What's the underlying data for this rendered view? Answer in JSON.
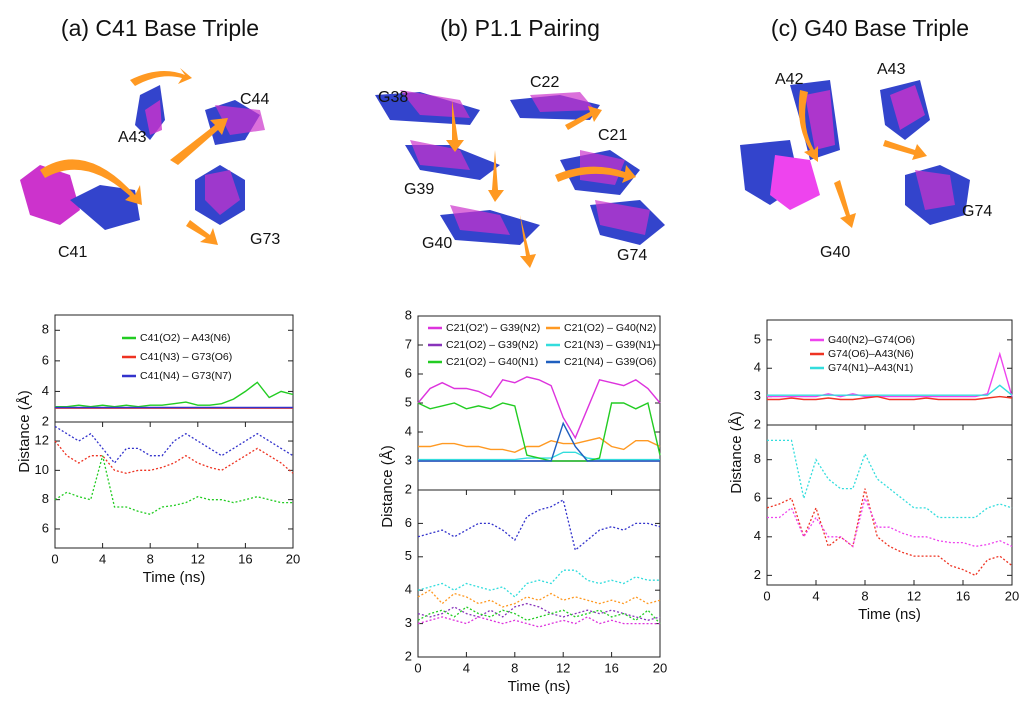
{
  "panels": [
    {
      "title": "(a) C41 Base Triple",
      "residue_labels": [
        "A43",
        "C44",
        "C41",
        "G73"
      ]
    },
    {
      "title": "(b) P1.1 Pairing",
      "residue_labels": [
        "G38",
        "C22",
        "C21",
        "G39",
        "G40",
        "G74"
      ]
    },
    {
      "title": "(c) G40 Base Triple",
      "residue_labels": [
        "A42",
        "A43",
        "G74",
        "G40"
      ]
    }
  ],
  "chart_data": [
    {
      "type": "line",
      "ylabel": "Distance (Å)",
      "line_style": "solid",
      "legend_columns": 1,
      "x": [
        0,
        1,
        2,
        3,
        4,
        5,
        6,
        7,
        8,
        9,
        10,
        11,
        12,
        13,
        14,
        15,
        16,
        17,
        18,
        19,
        20
      ],
      "xlim": [
        0,
        20
      ],
      "ylim": [
        2,
        9
      ],
      "yticks": [
        2,
        4,
        6,
        8
      ],
      "series": [
        {
          "name": "C41(O2) – A43(N6)",
          "color": "#22cc22",
          "values": [
            3,
            3,
            3.1,
            3,
            3.1,
            3,
            3.1,
            3,
            3.1,
            3.1,
            3.2,
            3.3,
            3.1,
            3.1,
            3.2,
            3.5,
            4,
            4.6,
            3.6,
            4,
            3.8
          ]
        },
        {
          "name": "C41(N3) – G73(O6)",
          "color": "#ee3322",
          "values": [
            2.9,
            2.9,
            2.9,
            2.9,
            2.9,
            2.9,
            2.9,
            2.9,
            2.9,
            2.9,
            2.9,
            2.9,
            2.9,
            2.9,
            2.9,
            2.9,
            2.9,
            2.9,
            2.9,
            2.9,
            2.9
          ]
        },
        {
          "name": "C41(N4) – G73(N7)",
          "color": "#3333cc",
          "values": [
            2.95,
            2.95,
            2.95,
            2.95,
            2.95,
            2.95,
            2.95,
            2.95,
            2.95,
            2.95,
            2.95,
            2.95,
            2.95,
            2.95,
            2.95,
            2.95,
            2.95,
            2.95,
            2.95,
            2.95,
            2.95
          ]
        }
      ]
    },
    {
      "type": "line",
      "xlabel": "Time (ns)",
      "line_style": "dotted",
      "x": [
        0,
        1,
        2,
        3,
        4,
        5,
        6,
        7,
        8,
        9,
        10,
        11,
        12,
        13,
        14,
        15,
        16,
        17,
        18,
        19,
        20
      ],
      "xlim": [
        0,
        20
      ],
      "xticks": [
        0,
        4,
        8,
        12,
        16,
        20
      ],
      "ylim": [
        4.7,
        13.3
      ],
      "yticks": [
        6,
        8,
        10,
        12
      ],
      "series": [
        {
          "color": "#3333cc",
          "values": [
            13,
            12.5,
            12,
            12.5,
            11.5,
            10.5,
            11.5,
            11.5,
            11,
            11,
            12,
            12.5,
            12,
            11.5,
            11,
            11.5,
            12,
            12.5,
            12,
            11.5,
            11
          ]
        },
        {
          "color": "#ee3322",
          "values": [
            12,
            11,
            10.5,
            11,
            11,
            10,
            9.8,
            10,
            10,
            10.2,
            10.5,
            11,
            10.5,
            10.2,
            10,
            10.5,
            11,
            11.5,
            11,
            10.5,
            9.8
          ]
        },
        {
          "color": "#22cc22",
          "values": [
            8,
            8.5,
            8.2,
            8,
            11,
            7.5,
            7.5,
            7.2,
            7,
            7.5,
            7.6,
            7.8,
            8.2,
            8,
            8,
            7.8,
            8,
            8.2,
            8,
            7.8,
            7.8
          ]
        }
      ]
    },
    {
      "type": "line",
      "ylabel": "Distance (Å)",
      "line_style": "solid",
      "legend_columns": 2,
      "x": [
        0,
        1,
        2,
        3,
        4,
        5,
        6,
        7,
        8,
        9,
        10,
        11,
        12,
        13,
        14,
        15,
        16,
        17,
        18,
        19,
        20
      ],
      "xlim": [
        0,
        20
      ],
      "ylim": [
        2,
        8
      ],
      "yticks": [
        2,
        3,
        4,
        5,
        6,
        7,
        8
      ],
      "series": [
        {
          "name": "C21(O2') – G39(N2)",
          "color": "#dd33dd",
          "values": [
            5,
            5.5,
            5.7,
            5.5,
            5.5,
            5.4,
            5.2,
            5.8,
            5.7,
            5.9,
            5.8,
            5.6,
            4.5,
            3.8,
            4.8,
            5.8,
            5.7,
            5.6,
            5.8,
            5.5,
            5
          ]
        },
        {
          "name": "C21(O2) – G40(N2)",
          "color": "#ff9922",
          "values": [
            3.5,
            3.5,
            3.6,
            3.6,
            3.5,
            3.5,
            3.4,
            3.4,
            3.3,
            3.5,
            3.5,
            3.7,
            3.6,
            3.6,
            3.7,
            3.8,
            3.5,
            3.4,
            3.7,
            3.7,
            3.5
          ]
        },
        {
          "name": "C21(O2) – G39(N2)",
          "color": "#8833bb",
          "values": [
            3,
            3,
            3,
            3,
            3,
            3,
            3,
            3,
            3,
            3,
            3,
            3,
            3,
            3,
            3,
            3,
            3,
            3,
            3,
            3,
            3
          ]
        },
        {
          "name": "C21(N3) – G39(N1)",
          "color": "#33dddd",
          "values": [
            3.05,
            3.05,
            3.05,
            3.05,
            3.05,
            3.05,
            3.05,
            3.05,
            3.05,
            3.1,
            3.1,
            3.1,
            3.3,
            3.3,
            3.1,
            3.05,
            3.05,
            3.05,
            3.05,
            3.05,
            3.05
          ]
        },
        {
          "name": "C21(O2) – G40(N1)",
          "color": "#22cc22",
          "values": [
            5,
            4.8,
            4.9,
            5,
            4.8,
            4.9,
            4.8,
            5,
            4.9,
            3.2,
            3.1,
            3,
            3,
            3,
            3,
            3.1,
            5,
            5,
            4.8,
            5,
            3.2
          ]
        },
        {
          "name": "C21(N4) – G39(O6)",
          "color": "#1f5fbf",
          "values": [
            3,
            3,
            3,
            3,
            3,
            3,
            3,
            3,
            3,
            3,
            3,
            3,
            4.3,
            3.5,
            3,
            3,
            3,
            3,
            3,
            3,
            3
          ]
        }
      ]
    },
    {
      "type": "line",
      "xlabel": "Time (ns)",
      "line_style": "dotted",
      "x": [
        0,
        1,
        2,
        3,
        4,
        5,
        6,
        7,
        8,
        9,
        10,
        11,
        12,
        13,
        14,
        15,
        16,
        17,
        18,
        19,
        20
      ],
      "xlim": [
        0,
        20
      ],
      "xticks": [
        0,
        4,
        8,
        12,
        16,
        20
      ],
      "ylim": [
        2,
        7
      ],
      "yticks": [
        2,
        3,
        4,
        5,
        6
      ],
      "series": [
        {
          "color": "#3333cc",
          "values": [
            5.6,
            5.7,
            5.8,
            5.6,
            5.8,
            6,
            6,
            5.8,
            5.5,
            6.2,
            6.4,
            6.5,
            6.7,
            5.2,
            5.5,
            5.8,
            5.9,
            5.8,
            6,
            6,
            5.9
          ]
        },
        {
          "color": "#33dddd",
          "values": [
            4,
            4.1,
            4.2,
            4,
            4.2,
            4.1,
            4,
            4.1,
            3.8,
            4.2,
            4.3,
            4.2,
            4.6,
            4.6,
            4.3,
            4.2,
            4.3,
            4.2,
            4.4,
            4.3,
            4.3
          ]
        },
        {
          "color": "#ff9922",
          "values": [
            3.8,
            4,
            3.6,
            3.9,
            3.8,
            3.6,
            3.7,
            3.5,
            3.6,
            3.8,
            3.7,
            3.9,
            3.7,
            3.8,
            3.7,
            3.6,
            3.7,
            3.6,
            3.8,
            3.6,
            3.7
          ]
        },
        {
          "color": "#8833bb",
          "values": [
            3.3,
            3.2,
            3.3,
            3.5,
            3.3,
            3.2,
            3.4,
            3.2,
            3.5,
            3.6,
            3.5,
            3.3,
            3.2,
            3.3,
            3.4,
            3.3,
            3.4,
            3.3,
            3.2,
            3.1,
            3.2
          ]
        },
        {
          "color": "#22cc22",
          "values": [
            3.1,
            3.3,
            3.4,
            3.2,
            3.5,
            3.3,
            3.2,
            3.4,
            3.3,
            3.1,
            3.2,
            3.3,
            3.4,
            3.2,
            3.3,
            3.4,
            3.2,
            3.3,
            3.1,
            3.4,
            3
          ]
        },
        {
          "color": "#dd33dd",
          "values": [
            3,
            3.1,
            3.2,
            3.1,
            3,
            3.2,
            3.1,
            3,
            3.1,
            3,
            2.9,
            3,
            3.1,
            3,
            3.2,
            3,
            3.1,
            3,
            3,
            3,
            3
          ]
        }
      ]
    },
    {
      "type": "line",
      "ylabel": "Distance (Å)",
      "line_style": "solid",
      "legend_columns": 1,
      "x": [
        0,
        1,
        2,
        3,
        4,
        5,
        6,
        7,
        8,
        9,
        10,
        11,
        12,
        13,
        14,
        15,
        16,
        17,
        18,
        19,
        20
      ],
      "xlim": [
        0,
        20
      ],
      "ylim": [
        2,
        5.7
      ],
      "yticks": [
        2,
        3,
        4,
        5
      ],
      "series": [
        {
          "name": "G40(N2)–G74(O6)",
          "color": "#ee44ee",
          "values": [
            3,
            3,
            3,
            3,
            3,
            3.1,
            3,
            3.1,
            3,
            3,
            3,
            3,
            3,
            3,
            3,
            3,
            3,
            3,
            3.1,
            4.5,
            3
          ]
        },
        {
          "name": "G74(O6)–A43(N6)",
          "color": "#ee3322",
          "values": [
            2.9,
            2.9,
            2.95,
            2.9,
            2.9,
            2.95,
            2.9,
            2.9,
            2.95,
            3,
            2.9,
            2.9,
            2.9,
            2.95,
            2.9,
            2.9,
            2.9,
            2.9,
            2.95,
            3,
            2.95
          ]
        },
        {
          "name": "G74(N1)–A43(N1)",
          "color": "#33dddd",
          "values": [
            3.05,
            3.05,
            3.05,
            3.05,
            3.05,
            3.05,
            3.05,
            3.05,
            3.05,
            3.05,
            3.05,
            3.05,
            3.05,
            3.05,
            3.05,
            3.05,
            3.05,
            3.05,
            3.05,
            3.4,
            3.05
          ]
        }
      ]
    },
    {
      "type": "line",
      "xlabel": "Time (ns)",
      "line_style": "dotted",
      "x": [
        0,
        1,
        2,
        3,
        4,
        5,
        6,
        7,
        8,
        9,
        10,
        11,
        12,
        13,
        14,
        15,
        16,
        17,
        18,
        19,
        20
      ],
      "xlim": [
        0,
        20
      ],
      "xticks": [
        0,
        4,
        8,
        12,
        16,
        20
      ],
      "ylim": [
        1.5,
        9.8
      ],
      "yticks": [
        2,
        4,
        6,
        8
      ],
      "series": [
        {
          "color": "#33dddd",
          "values": [
            9,
            9,
            9,
            6,
            8,
            7,
            6.5,
            6.5,
            8.3,
            7,
            6.5,
            6,
            5.5,
            5.5,
            5,
            5,
            5,
            5,
            5.5,
            5.7,
            5.5
          ]
        },
        {
          "color": "#ee3322",
          "values": [
            5.5,
            5.7,
            6,
            4,
            5.5,
            3.5,
            4,
            3.5,
            6.5,
            4,
            3.5,
            3.2,
            3,
            3,
            3,
            2.5,
            2.3,
            2,
            2.8,
            3,
            2.5
          ]
        },
        {
          "color": "#ee44ee",
          "values": [
            5,
            5,
            5.5,
            4,
            5,
            4,
            4,
            3.5,
            6,
            4.5,
            4.5,
            4.2,
            4,
            4,
            3.8,
            3.7,
            3.7,
            3.5,
            3.6,
            3.8,
            3.5
          ]
        }
      ]
    }
  ]
}
